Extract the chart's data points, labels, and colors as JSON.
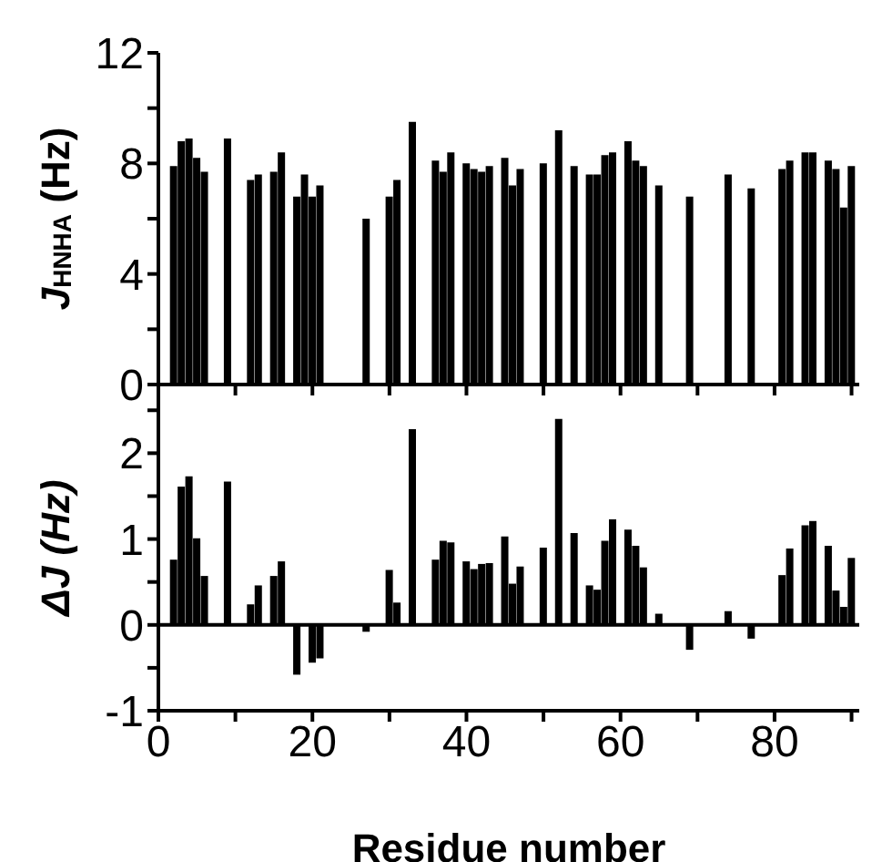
{
  "chart_data": [
    {
      "type": "bar",
      "ylabel": "J$_{HNHA}$ (Hz)",
      "x": [
        2,
        3,
        4,
        5,
        6,
        9,
        12,
        13,
        15,
        16,
        18,
        19,
        20,
        21,
        27,
        30,
        31,
        33,
        36,
        37,
        38,
        40,
        41,
        42,
        43,
        45,
        46,
        47,
        50,
        52,
        54,
        56,
        57,
        58,
        59,
        61,
        62,
        63,
        65,
        69,
        74,
        77,
        81,
        82,
        84,
        85,
        87,
        88,
        89,
        90
      ],
      "series": [
        {
          "color": "#000000",
          "values": [
            7.9,
            8.8,
            8.9,
            8.2,
            7.7,
            8.9,
            7.4,
            7.6,
            7.7,
            8.4,
            6.8,
            7.6,
            6.8,
            7.2,
            6.0,
            6.8,
            7.4,
            9.5,
            8.1,
            7.7,
            8.4,
            8.0,
            7.8,
            7.7,
            7.9,
            8.2,
            7.2,
            7.8,
            8.0,
            9.2,
            7.9,
            7.6,
            7.6,
            8.3,
            8.4,
            8.8,
            8.1,
            7.9,
            7.2,
            6.8,
            7.6,
            7.1,
            7.8,
            8.1,
            8.4,
            8.4,
            8.1,
            7.8,
            6.4,
            7.9
          ]
        }
      ],
      "xlim": [
        0,
        91
      ],
      "xticks": [
        {
          "value": 0,
          "label": null
        },
        {
          "value": 10,
          "label": null
        },
        {
          "value": 20,
          "label": null
        },
        {
          "value": 30,
          "label": null
        },
        {
          "value": 40,
          "label": null
        },
        {
          "value": 50,
          "label": null
        },
        {
          "value": 60,
          "label": null
        },
        {
          "value": 70,
          "label": null
        },
        {
          "value": 80,
          "label": null
        },
        {
          "value": 90,
          "label": null
        }
      ],
      "ylim": [
        0,
        12
      ],
      "yticks": [
        0,
        {
          "value": 2,
          "label": null
        },
        4,
        {
          "value": 6,
          "label": null
        },
        8,
        {
          "value": 10,
          "label": null
        },
        12
      ],
      "tick_labels": "y"
    },
    {
      "type": "bar",
      "ylabel": "ΔJ (Hz)",
      "xlabel": "Residue number",
      "x": [
        2,
        3,
        4,
        5,
        6,
        9,
        12,
        13,
        15,
        16,
        18,
        20,
        21,
        27,
        30,
        31,
        33,
        36,
        37,
        38,
        40,
        41,
        42,
        43,
        45,
        46,
        47,
        50,
        52,
        54,
        56,
        57,
        58,
        59,
        61,
        62,
        63,
        65,
        69,
        74,
        77,
        81,
        82,
        84,
        85,
        87,
        88,
        89,
        90
      ],
      "series": [
        {
          "color": "#000000",
          "values": [
            0.76,
            1.61,
            1.73,
            1.01,
            0.57,
            1.67,
            0.24,
            0.46,
            0.57,
            0.74,
            -0.58,
            -0.44,
            -0.39,
            -0.08,
            0.64,
            0.26,
            2.28,
            0.76,
            0.98,
            0.96,
            0.74,
            0.65,
            0.71,
            0.72,
            1.03,
            0.48,
            0.68,
            0.9,
            2.4,
            1.07,
            0.46,
            0.41,
            0.98,
            1.23,
            1.11,
            0.92,
            0.67,
            0.13,
            -0.29,
            0.16,
            -0.16,
            0.58,
            0.89,
            1.16,
            1.21,
            0.92,
            0.4,
            0.21,
            0.78
          ]
        }
      ],
      "xlim": [
        0,
        91
      ],
      "xticks": [
        0,
        {
          "value": 10,
          "label": null
        },
        20,
        {
          "value": 30,
          "label": null
        },
        40,
        {
          "value": 50,
          "label": null
        },
        60,
        {
          "value": 70,
          "label": null
        },
        80,
        {
          "value": 90,
          "label": null
        }
      ],
      "ylim": [
        -1,
        2.8
      ],
      "yticks": [
        -1,
        {
          "value": -0.5,
          "label": null
        },
        0,
        {
          "value": 0.5,
          "label": null
        },
        1,
        {
          "value": 1.5,
          "label": null
        },
        2,
        {
          "value": 2.5,
          "label": null
        }
      ]
    }
  ]
}
